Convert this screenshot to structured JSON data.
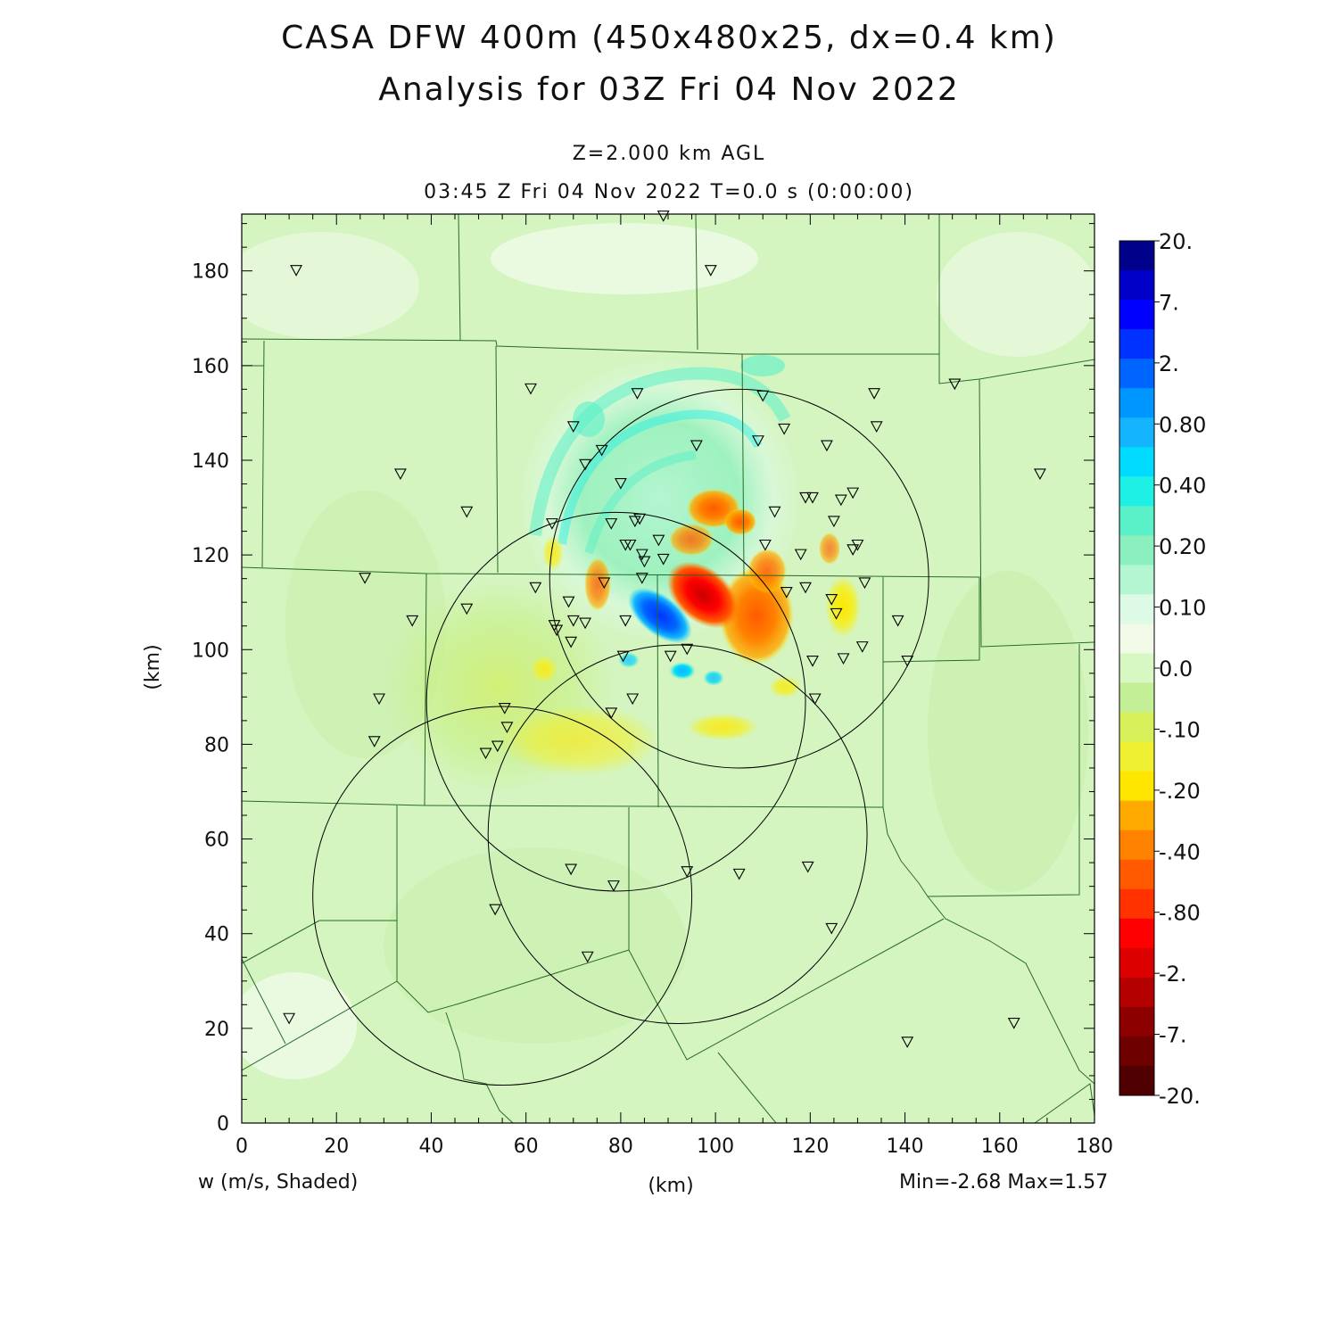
{
  "title_line1": "CASA DFW 400m (450x480x25, dx=0.4 km)",
  "title_line2": "Analysis for 03Z Fri 04 Nov 2022",
  "level_label": "Z=2.000 km AGL",
  "time_label": "03:45 Z Fri 04 Nov 2022    T=0.0 s (0:00:00)",
  "field_label": "w (m/s, Shaded)",
  "minmax_label": "Min=-2.68 Max=1.57",
  "chart_data": {
    "type": "heatmap",
    "xlabel": "(km)",
    "ylabel": "(km)",
    "xlim": [
      0,
      180
    ],
    "ylim": [
      0,
      192
    ],
    "x_ticks": [
      "0",
      "20",
      "40",
      "60",
      "80",
      "100",
      "120",
      "140",
      "160",
      "180"
    ],
    "y_ticks": [
      "0",
      "20",
      "40",
      "60",
      "80",
      "100",
      "120",
      "140",
      "160",
      "180"
    ],
    "colorbar_labels": [
      "20.",
      "7.",
      "2.",
      "0.80",
      "0.40",
      "0.20",
      "0.10",
      "0.0",
      "-.10",
      "-.20",
      "-.40",
      "-.80",
      "-2.",
      "-7.",
      "-20."
    ],
    "colorbar_colors": [
      "#00008a",
      "#0000c8",
      "#0000ff",
      "#0032ff",
      "#0064ff",
      "#0096ff",
      "#14b4ff",
      "#00dcff",
      "#1ef0e6",
      "#5af0c8",
      "#8cf0be",
      "#b4f5d2",
      "#dcfae6",
      "#f0fae6",
      "#d7f7c3",
      "#c3f096",
      "#d7f05a",
      "#f0f032",
      "#ffe600",
      "#ffaa00",
      "#ff8200",
      "#ff5a00",
      "#ff3200",
      "#ff0000",
      "#dc0000",
      "#b40000",
      "#8c0000",
      "#6e0000",
      "#500000"
    ],
    "radars": [
      {
        "x": 105,
        "y": 115,
        "r": 40
      },
      {
        "x": 79,
        "y": 89,
        "r": 40
      },
      {
        "x": 92,
        "y": 61,
        "r": 40
      },
      {
        "x": 55,
        "y": 48,
        "r": 40
      }
    ],
    "stations": [
      [
        11.5,
        180
      ],
      [
        89,
        191.5
      ],
      [
        99,
        180
      ],
      [
        61,
        155
      ],
      [
        83.5,
        154
      ],
      [
        110,
        153.5
      ],
      [
        133.5,
        154
      ],
      [
        150.5,
        156
      ],
      [
        70,
        147
      ],
      [
        76,
        142
      ],
      [
        72.5,
        139
      ],
      [
        96,
        143
      ],
      [
        109,
        144
      ],
      [
        114.5,
        146.5
      ],
      [
        123.5,
        143
      ],
      [
        134,
        147
      ],
      [
        168.5,
        137
      ],
      [
        33.5,
        137
      ],
      [
        80,
        135
      ],
      [
        47.5,
        129
      ],
      [
        112.5,
        129
      ],
      [
        119,
        132
      ],
      [
        120.5,
        132
      ],
      [
        126.5,
        131.5
      ],
      [
        129,
        133
      ],
      [
        65.5,
        126.5
      ],
      [
        78,
        126.5
      ],
      [
        83,
        127
      ],
      [
        84,
        127.5
      ],
      [
        125,
        127
      ],
      [
        81,
        122
      ],
      [
        82,
        122
      ],
      [
        88,
        123
      ],
      [
        110.5,
        122
      ],
      [
        130,
        122
      ],
      [
        84.5,
        120
      ],
      [
        85,
        118.5
      ],
      [
        89,
        119
      ],
      [
        118,
        120
      ],
      [
        129,
        121
      ],
      [
        26,
        115
      ],
      [
        84.5,
        115
      ],
      [
        62,
        113
      ],
      [
        76.5,
        114
      ],
      [
        115,
        112
      ],
      [
        119,
        113
      ],
      [
        131.5,
        114
      ],
      [
        124.5,
        110.5
      ],
      [
        69,
        110
      ],
      [
        47.5,
        108.5
      ],
      [
        125.5,
        107.5
      ],
      [
        36,
        106
      ],
      [
        66,
        105
      ],
      [
        70,
        106
      ],
      [
        72.5,
        105.5
      ],
      [
        81,
        106
      ],
      [
        138.5,
        106
      ],
      [
        66.5,
        104
      ],
      [
        69.5,
        101.5
      ],
      [
        80.5,
        98.5
      ],
      [
        90.5,
        98.5
      ],
      [
        94,
        100
      ],
      [
        120.5,
        97.5
      ],
      [
        127,
        98
      ],
      [
        131,
        100.5
      ],
      [
        140.5,
        97.5
      ],
      [
        29,
        89.5
      ],
      [
        82.5,
        89.5
      ],
      [
        121,
        89.5
      ],
      [
        55.5,
        87.5
      ],
      [
        78,
        86.5
      ],
      [
        56,
        83.5
      ],
      [
        28,
        80.5
      ],
      [
        54,
        79.5
      ],
      [
        51.5,
        78
      ],
      [
        69.5,
        53.5
      ],
      [
        94,
        53
      ],
      [
        105,
        52.5
      ],
      [
        119.5,
        54
      ],
      [
        78.5,
        50
      ],
      [
        53.5,
        45
      ],
      [
        124.5,
        41
      ],
      [
        73,
        35
      ],
      [
        10,
        22
      ],
      [
        163,
        21
      ],
      [
        140.5,
        17
      ]
    ]
  }
}
